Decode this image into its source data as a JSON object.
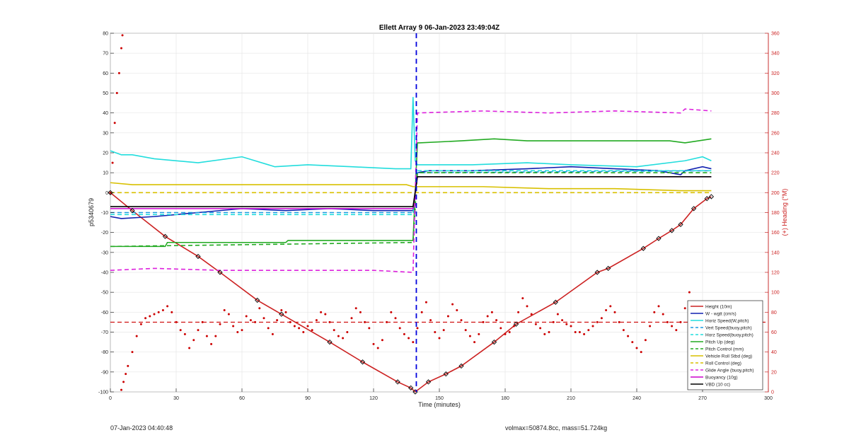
{
  "chart_data": {
    "type": "line",
    "title": "Ellett Array 9 06-Jan-2023 23:49:04Z",
    "xlabel": "Time (minutes)",
    "ylabel_left": "p5340679",
    "ylabel_right": "(+) Heading (°M)",
    "xlim": [
      0,
      300
    ],
    "ylim_left": [
      -100,
      80
    ],
    "ylim_right": [
      0,
      360
    ],
    "x_ticks": [
      "0",
      "30",
      "60",
      "90",
      "120",
      "150",
      "180",
      "210",
      "240",
      "270",
      "300"
    ],
    "y_ticks_left": [
      "80",
      "70",
      "60",
      "50",
      "40",
      "30",
      "20",
      "10",
      "0",
      "-10",
      "-20",
      "-30",
      "-40",
      "-50",
      "-60",
      "-70",
      "-80",
      "-90",
      "-100"
    ],
    "y_ticks_right": [
      "360",
      "340",
      "320",
      "300",
      "280",
      "260",
      "240",
      "220",
      "200",
      "180",
      "160",
      "140",
      "120",
      "100",
      "80",
      "60",
      "40",
      "20",
      "0"
    ],
    "grid": true,
    "legend_position": "bottom-right",
    "vertical_marker": {
      "x": 139.5,
      "color": "#0000dd",
      "style": "dashed"
    },
    "heading_mean": {
      "y_right": 70,
      "color": "#cc0000",
      "style": "dashed"
    },
    "series": [
      {
        "name": "Height (10m)",
        "color": "#cc2222",
        "style": "solid",
        "x": [
          0,
          10,
          25,
          40,
          50,
          67,
          78,
          100,
          115,
          131,
          137,
          139,
          145,
          153,
          160,
          175,
          185,
          203,
          222,
          227,
          243,
          250,
          256,
          260,
          266,
          272,
          274
        ],
        "y": [
          0,
          -9,
          -22,
          -32,
          -40,
          -54,
          -61,
          -75,
          -85,
          -95,
          -98,
          -100,
          -95,
          -91,
          -87,
          -75,
          -66,
          -55,
          -40,
          -38,
          -28,
          -23,
          -19,
          -16,
          -8,
          -3,
          -2
        ]
      },
      {
        "name": "W - wgtt (cm/s)",
        "color": "#1020b0",
        "style": "solid",
        "x": [
          0,
          5,
          20,
          40,
          60,
          80,
          100,
          120,
          138,
          140,
          145,
          165,
          190,
          210,
          230,
          250,
          260,
          262,
          270,
          274
        ],
        "y": [
          -12,
          -13,
          -12,
          -10,
          -8,
          -9,
          -8,
          -9,
          -9,
          10,
          11,
          11,
          12,
          13,
          12,
          11,
          9,
          11,
          13,
          12
        ]
      },
      {
        "name": "Horiz Speed(W,pitch)",
        "color": "#22dddd",
        "style": "solid",
        "x": [
          0,
          5,
          10,
          20,
          40,
          60,
          75,
          90,
          110,
          130,
          137,
          138,
          139,
          140,
          145,
          165,
          190,
          210,
          240,
          262,
          270,
          274
        ],
        "y": [
          21,
          19,
          19,
          17,
          15,
          18,
          13,
          14,
          13,
          12,
          12,
          48,
          16,
          14,
          14,
          14,
          15,
          14,
          13,
          16,
          18,
          16
        ]
      },
      {
        "name": "Vert Speed(buoy,pitch)",
        "color": "#1b9be0",
        "style": "dashed",
        "x": [
          0,
          138,
          140,
          274
        ],
        "y": [
          -10,
          -10,
          10,
          11
        ]
      },
      {
        "name": "Horz Speed(buoy,pitch)",
        "color": "#22dddd",
        "style": "dashed",
        "x": [
          0,
          138,
          140,
          274
        ],
        "y": [
          -11,
          -11,
          11,
          11
        ]
      },
      {
        "name": "Pitch Up (deg)",
        "color": "#22aa22",
        "style": "solid",
        "x": [
          0,
          25,
          26,
          80,
          81,
          138,
          140,
          141,
          160,
          175,
          190,
          230,
          255,
          262,
          274
        ],
        "y": [
          -27,
          -27,
          -25,
          -25,
          -24,
          -24,
          25,
          25,
          26,
          27,
          26,
          26,
          26,
          25,
          27
        ]
      },
      {
        "name": "Pitch Control (mm)",
        "color": "#22aa22",
        "style": "dashed",
        "x": [
          0,
          138,
          140,
          274
        ],
        "y": [
          -27,
          -25,
          10,
          10
        ]
      },
      {
        "name": "Vehicle Roll Stbd (deg)",
        "color": "#d8c000",
        "style": "solid",
        "x": [
          0,
          10,
          30,
          60,
          90,
          120,
          135,
          138,
          142,
          170,
          200,
          230,
          260,
          274
        ],
        "y": [
          5,
          4,
          4,
          4,
          4,
          4,
          4,
          3,
          3,
          3,
          2,
          2,
          1,
          1
        ]
      },
      {
        "name": "Roll Control (deg)",
        "color": "#d8c000",
        "style": "dashed",
        "x": [
          0,
          10,
          40,
          80,
          120,
          138,
          142,
          180,
          220,
          260,
          274
        ],
        "y": [
          0,
          0,
          0,
          0,
          0,
          0,
          0,
          0,
          0,
          0,
          0
        ]
      },
      {
        "name": "Glide Angle (buoy,pitch)",
        "color": "#dd22dd",
        "style": "dashed",
        "x": [
          0,
          20,
          50,
          90,
          120,
          138,
          140,
          170,
          200,
          230,
          260,
          262,
          274
        ],
        "y": [
          -39,
          -38,
          -39,
          -39,
          -39,
          -40,
          40,
          41,
          40,
          41,
          40,
          42,
          41
        ]
      },
      {
        "name": "Buoyancy (10g)",
        "color": "#cc00cc",
        "style": "solid",
        "x": [
          0,
          138,
          140,
          274
        ],
        "y": [
          -8,
          -8,
          8,
          8
        ]
      },
      {
        "name": "VBD (10 cc)",
        "color": "#000000",
        "style": "solid",
        "x": [
          0,
          2,
          138,
          140,
          274
        ],
        "y": [
          -7,
          -7,
          -7,
          8,
          8
        ]
      }
    ],
    "heading_points": {
      "name": "Heading (°M)",
      "color": "#cc0000",
      "x": [
        5,
        6,
        7,
        8,
        10,
        12,
        14,
        16,
        18,
        20,
        22,
        24,
        26,
        28,
        30,
        32,
        34,
        36,
        38,
        40,
        42,
        44,
        46,
        48,
        50,
        52,
        54,
        56,
        58,
        60,
        62,
        64,
        66,
        68,
        70,
        72,
        74,
        76,
        78,
        80,
        82,
        84,
        86,
        88,
        90,
        92,
        94,
        96,
        98,
        100,
        102,
        104,
        106,
        108,
        110,
        112,
        114,
        116,
        118,
        120,
        122,
        124,
        126,
        128,
        130,
        132,
        134,
        136,
        138,
        140,
        142,
        144,
        146,
        148,
        150,
        152,
        154,
        156,
        158,
        160,
        162,
        164,
        166,
        168,
        170,
        172,
        174,
        176,
        178,
        180,
        182,
        184,
        186,
        188,
        190,
        192,
        194,
        196,
        198,
        200,
        202,
        204,
        206,
        208,
        210,
        212,
        214,
        216,
        218,
        220,
        222,
        224,
        226,
        228,
        230,
        232,
        234,
        236,
        238,
        240,
        242,
        244,
        246,
        248,
        250,
        252,
        254,
        256,
        258,
        260,
        262,
        264,
        266,
        268,
        270,
        272,
        274
      ],
      "y_right": [
        2,
        10,
        18,
        26,
        40,
        56,
        68,
        74,
        76,
        78,
        80,
        82,
        86,
        80,
        70,
        62,
        58,
        44,
        52,
        62,
        70,
        56,
        48,
        56,
        68,
        82,
        78,
        66,
        60,
        62,
        76,
        72,
        70,
        84,
        74,
        64,
        58,
        72,
        82,
        80,
        70,
        66,
        64,
        60,
        66,
        62,
        72,
        80,
        78,
        70,
        62,
        56,
        54,
        60,
        74,
        84,
        80,
        70,
        64,
        48,
        44,
        52,
        70,
        80,
        74,
        64,
        58,
        54,
        50,
        64,
        80,
        90,
        72,
        60,
        54,
        62,
        76,
        88,
        82,
        72,
        62,
        56,
        50,
        58,
        70,
        76,
        80,
        72,
        64,
        58,
        60,
        66,
        80,
        94,
        86,
        78,
        68,
        64,
        58,
        60,
        70,
        78,
        72,
        68,
        66,
        60,
        60,
        58,
        62,
        66,
        70,
        74,
        82,
        86,
        80,
        70,
        62,
        56,
        50,
        44,
        40,
        52,
        66,
        80,
        86,
        78,
        70,
        66,
        62,
        70,
        84,
        100,
        78,
        70,
        64,
        60,
        58
      ]
    },
    "heading_early": {
      "x": [
        0,
        1,
        2,
        3,
        4,
        5,
        5.5
      ],
      "y_right": [
        200,
        230,
        270,
        300,
        320,
        345,
        358
      ]
    }
  },
  "footer": {
    "left": "07-Jan-2023 04:40:48",
    "right": "volmax=50874.8cc, mass=51.724kg"
  }
}
